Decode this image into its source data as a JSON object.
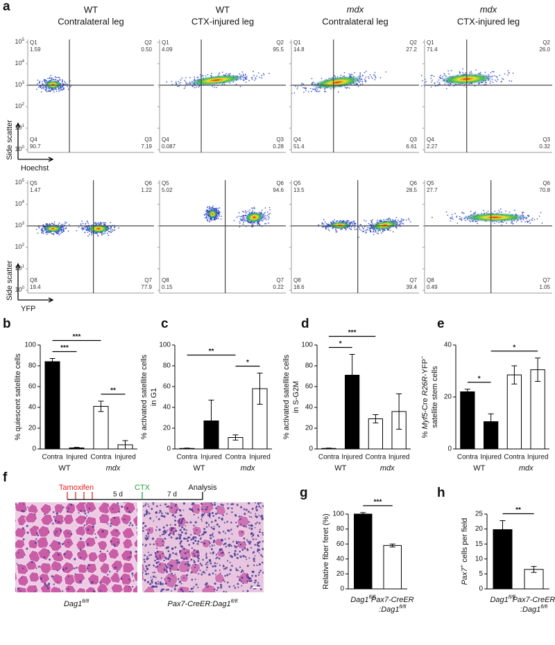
{
  "flow": {
    "panel": "a",
    "columns": [
      {
        "line1": "WT",
        "line2": "Contralateral leg"
      },
      {
        "line1": "WT",
        "line2": "CTX-injured leg"
      },
      {
        "line1": [
          {
            "text": "mdx",
            "italic": true
          }
        ],
        "line2": "Contralateral leg"
      },
      {
        "line1": [
          {
            "text": "mdx",
            "italic": true
          }
        ],
        "line2": "CTX-injured leg"
      }
    ],
    "yticks": [
      [
        {
          "text": "10"
        },
        {
          "text": "5",
          "sup": true
        }
      ],
      [
        {
          "text": "10"
        },
        {
          "text": "4",
          "sup": true
        }
      ],
      [
        {
          "text": "10"
        },
        {
          "text": "3",
          "sup": true
        }
      ],
      [
        {
          "text": "10"
        },
        {
          "text": "2",
          "sup": true
        }
      ],
      [
        {
          "text": "10"
        },
        {
          "text": "1",
          "sup": true
        }
      ],
      [
        {
          "text": "10"
        },
        {
          "text": "0",
          "sup": true
        }
      ]
    ],
    "ylabel": "Side scatter",
    "rows": [
      {
        "xlabel": "Hoechst",
        "plots": [
          [
            {
              "name": "Q1",
              "value": "1.59"
            },
            {
              "name": "Q2",
              "value": "0.50"
            },
            {
              "name": "Q3",
              "value": "7.19"
            },
            {
              "name": "Q4",
              "value": "90.7"
            }
          ],
          [
            {
              "name": "Q1",
              "value": "4.09"
            },
            {
              "name": "Q2",
              "value": "95.5"
            },
            {
              "name": "Q3",
              "value": "0.28"
            },
            {
              "name": "Q4",
              "value": "0.087"
            }
          ],
          [
            {
              "name": "Q1",
              "value": "14.8"
            },
            {
              "name": "Q2",
              "value": "27.2"
            },
            {
              "name": "Q3",
              "value": "6.61"
            },
            {
              "name": "Q4",
              "value": "51.4"
            }
          ],
          [
            {
              "name": "Q1",
              "value": "71.4"
            },
            {
              "name": "Q2",
              "value": "26.0"
            },
            {
              "name": "Q3",
              "value": "0.32"
            },
            {
              "name": "Q4",
              "value": "2.27"
            }
          ]
        ]
      },
      {
        "xlabel": "YFP",
        "plots": [
          [
            {
              "name": "Q5",
              "value": "1.47"
            },
            {
              "name": "Q6",
              "value": "1.22"
            },
            {
              "name": "Q7",
              "value": "77.9"
            },
            {
              "name": "Q8",
              "value": "19.4"
            }
          ],
          [
            {
              "name": "Q5",
              "value": "5.02"
            },
            {
              "name": "Q6",
              "value": "94.6"
            },
            {
              "name": "Q7",
              "value": "0.22"
            },
            {
              "name": "Q8",
              "value": "0.15"
            }
          ],
          [
            {
              "name": "Q5",
              "value": "13.5"
            },
            {
              "name": "Q6",
              "value": "28.5"
            },
            {
              "name": "Q7",
              "value": "39.4"
            },
            {
              "name": "Q8",
              "value": "18.6"
            }
          ],
          [
            {
              "name": "Q5",
              "value": "27.7"
            },
            {
              "name": "Q6",
              "value": "70.8"
            },
            {
              "name": "Q7",
              "value": "1.05"
            },
            {
              "name": "Q8",
              "value": "0.49"
            }
          ]
        ]
      }
    ]
  },
  "chart_data": [
    {
      "type": "bar",
      "panel": "b",
      "ylabel": [
        "% quiescent satellite cells"
      ],
      "categories": [
        "Contra",
        "Injured",
        "Contra",
        "Injured"
      ],
      "groups": [
        "WT",
        [
          {
            "text": "mdx",
            "italic": true
          }
        ]
      ],
      "values": [
        84,
        1,
        41,
        4
      ],
      "errors": [
        3,
        0.5,
        5,
        4
      ],
      "colors": [
        "#000000",
        "#000000",
        "#ffffff",
        "#ffffff"
      ],
      "ylim": [
        0,
        100
      ],
      "yticks": [
        0,
        20,
        40,
        60,
        80,
        100
      ],
      "significance": [
        {
          "from": 0,
          "to": 1,
          "label": "***"
        },
        {
          "from": 2,
          "to": 3,
          "label": "**"
        },
        {
          "from": 0,
          "to": 2,
          "label": "***"
        }
      ]
    },
    {
      "type": "bar",
      "panel": "c",
      "ylabel": [
        "% activated satellite cells",
        "in G1"
      ],
      "categories": [
        "Contra",
        "Injured",
        "Contra",
        "Injured"
      ],
      "groups": [
        "WT",
        [
          {
            "text": "mdx",
            "italic": true
          }
        ]
      ],
      "values": [
        0.5,
        27,
        11,
        58
      ],
      "errors": [
        0.3,
        20,
        2.5,
        15
      ],
      "colors": [
        "#000000",
        "#000000",
        "#ffffff",
        "#ffffff"
      ],
      "ylim": [
        0,
        100
      ],
      "yticks": [
        0,
        20,
        40,
        60,
        80,
        100
      ],
      "significance": [
        {
          "from": 2,
          "to": 3,
          "label": "*"
        },
        {
          "from": 0,
          "to": 2,
          "label": "**"
        }
      ]
    },
    {
      "type": "bar",
      "panel": "d",
      "ylabel": [
        "% activated satellite cells",
        "in S-G2M"
      ],
      "categories": [
        "Contra",
        "Injured",
        "Contra",
        "Injured"
      ],
      "groups": [
        "WT",
        [
          {
            "text": "mdx",
            "italic": true
          }
        ]
      ],
      "values": [
        0.5,
        71,
        29,
        36
      ],
      "errors": [
        0.3,
        20,
        4,
        17
      ],
      "colors": [
        "#000000",
        "#000000",
        "#ffffff",
        "#ffffff"
      ],
      "ylim": [
        0,
        100
      ],
      "yticks": [
        0,
        20,
        40,
        60,
        80,
        100
      ],
      "significance": [
        {
          "from": 0,
          "to": 1,
          "label": "*"
        },
        {
          "from": 0,
          "to": 2,
          "label": "***"
        }
      ]
    },
    {
      "type": "bar",
      "panel": "e",
      "ylabel": [
        [
          {
            "text": "% "
          },
          {
            "text": "Myf5",
            "italic": true
          },
          {
            "text": "-Cre "
          },
          {
            "text": "R26R",
            "italic": true
          },
          {
            "text": "-YFP"
          },
          {
            "text": "−",
            "sup": true
          }
        ],
        "satellite stem cells"
      ],
      "categories": [
        "Contra",
        "Injured",
        "Contra",
        "Injured"
      ],
      "groups": [
        "WT",
        [
          {
            "text": "mdx",
            "italic": true
          }
        ]
      ],
      "values": [
        22,
        10.5,
        28.5,
        30.5
      ],
      "errors": [
        1,
        3,
        3.5,
        4.5
      ],
      "colors": [
        "#000000",
        "#000000",
        "#ffffff",
        "#ffffff"
      ],
      "ylim": [
        0,
        40
      ],
      "yticks": [
        0,
        20,
        40
      ],
      "significance": [
        {
          "from": 0,
          "to": 1,
          "label": "*"
        },
        {
          "from": 1,
          "to": 3,
          "label": "*"
        }
      ]
    },
    {
      "type": "bar",
      "panel": "g",
      "ylabel": [
        "Relative fiber feret (%)"
      ],
      "categories": [
        [
          [
            {
              "text": "Dag1",
              "italic": true
            },
            {
              "text": "fl/fl",
              "italic": true,
              "sup": true
            }
          ]
        ],
        [
          [
            {
              "text": "Pax7",
              "italic": true
            },
            {
              "text": "-CreER",
              "italic": true
            }
          ],
          [
            {
              "text": ":Dag1",
              "italic": true
            },
            {
              "text": "fl/fl",
              "italic": true,
              "sup": true
            }
          ]
        ]
      ],
      "values": [
        100,
        58
      ],
      "errors": [
        2,
        2
      ],
      "colors": [
        "#000000",
        "#ffffff"
      ],
      "ylim": [
        0,
        100
      ],
      "yticks": [
        0,
        20,
        40,
        60,
        80,
        100
      ],
      "significance": [
        {
          "from": 0,
          "to": 1,
          "label": "***"
        }
      ]
    },
    {
      "type": "bar",
      "panel": "h",
      "ylabel": [
        [
          {
            "text": "Pax7",
            "italic": true
          },
          {
            "text": "+",
            "sup": true
          },
          {
            "text": " cells per field"
          }
        ]
      ],
      "categories": [
        [
          [
            {
              "text": "Dag1",
              "italic": true
            },
            {
              "text": "fl/fl",
              "italic": true,
              "sup": true
            }
          ]
        ],
        [
          [
            {
              "text": "Pax7",
              "italic": true
            },
            {
              "text": "-CreER",
              "italic": true
            }
          ],
          [
            {
              "text": ":Dag1",
              "italic": true
            },
            {
              "text": "fl/fl",
              "italic": true,
              "sup": true
            }
          ]
        ]
      ],
      "values": [
        19.8,
        6.5
      ],
      "errors": [
        3,
        1
      ],
      "colors": [
        "#000000",
        "#ffffff"
      ],
      "ylim": [
        0,
        25
      ],
      "yticks": [
        0,
        5,
        10,
        15,
        20,
        25
      ],
      "significance": [
        {
          "from": 0,
          "to": 1,
          "label": "**"
        }
      ]
    }
  ],
  "histology": {
    "panel": "f",
    "timeline": {
      "tamoxifen": "Tamoxifen",
      "interval1": "5 d",
      "ctx": "CTX",
      "interval2": "7 d",
      "analysis": "Analysis"
    },
    "captions": [
      [
        {
          "text": "Dag1",
          "italic": true
        },
        {
          "text": "fl/fl",
          "italic": true,
          "sup": true
        }
      ],
      [
        {
          "text": "Pax7-CreER:Dag1",
          "italic": true
        },
        {
          "text": "fl/fl",
          "italic": true,
          "sup": true
        }
      ]
    ]
  }
}
